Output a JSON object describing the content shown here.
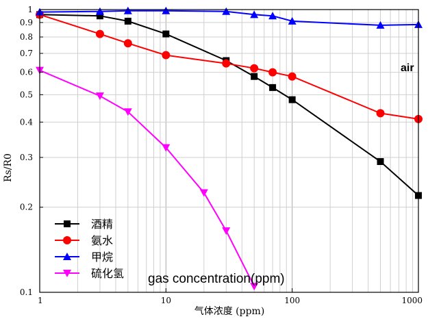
{
  "chart_data": {
    "type": "line",
    "xlabel": "气体浓度 (ppm)",
    "ylabel": "Rs/R0",
    "xscale": "log",
    "yscale": "log",
    "xlim": [
      1,
      1000
    ],
    "ylim": [
      0.1,
      1
    ],
    "grid": true,
    "legend_position": "bottom-left",
    "x_ticks": [
      "1",
      "10",
      "100",
      "1000"
    ],
    "y_ticks": [
      "1",
      "0.9",
      "0.8",
      "0.7",
      "0.6",
      "0.5",
      "0.4",
      "0.3",
      "0.2",
      "0.1"
    ],
    "series": [
      {
        "name": "酒精",
        "color": "#000000",
        "marker": "square",
        "x": [
          1,
          3,
          5,
          10,
          30,
          50,
          70,
          100,
          500,
          1000
        ],
        "y": [
          0.96,
          0.95,
          0.91,
          0.82,
          0.66,
          0.58,
          0.53,
          0.48,
          0.29,
          0.22
        ]
      },
      {
        "name": "氨水",
        "color": "#ff0000",
        "marker": "circle",
        "x": [
          1,
          3,
          5,
          10,
          30,
          50,
          70,
          100,
          500,
          1000
        ],
        "y": [
          0.96,
          0.82,
          0.76,
          0.69,
          0.645,
          0.62,
          0.6,
          0.58,
          0.43,
          0.41
        ]
      },
      {
        "name": "甲烷",
        "color": "#0000ff",
        "marker": "triangle-up",
        "x": [
          1,
          3,
          5,
          10,
          30,
          50,
          70,
          100,
          500,
          1000
        ],
        "y": [
          0.98,
          0.985,
          0.99,
          0.99,
          0.985,
          0.96,
          0.95,
          0.91,
          0.88,
          0.885
        ]
      },
      {
        "name": "硫化氢",
        "color": "#ff00ff",
        "marker": "triangle-down",
        "x": [
          1,
          3,
          5,
          10,
          20,
          30,
          50
        ],
        "y": [
          0.61,
          0.495,
          0.435,
          0.325,
          0.225,
          0.165,
          0.105
        ]
      }
    ],
    "annotations": [
      "air",
      "gas concentration(ppm)"
    ]
  }
}
